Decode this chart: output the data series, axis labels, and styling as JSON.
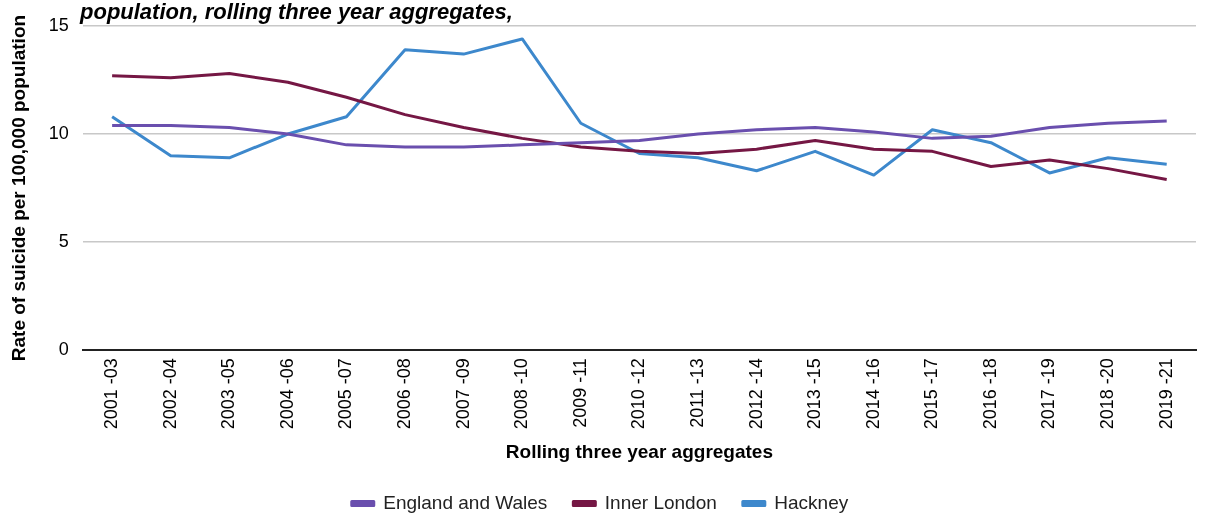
{
  "chart_data": {
    "type": "line",
    "title": "population, rolling three year aggregates,",
    "xlabel": "Rolling three year aggregates",
    "ylabel": "Rate of suicide per 100,000 population",
    "categories": [
      "2001 -03",
      "2002 -04",
      "2003 -05",
      "2004 -06",
      "2005 -07",
      "2006 -08",
      "2007 -09",
      "2008 -10",
      "2009 -11",
      "2010 -12",
      "2011 -13",
      "2012 -14",
      "2013 -15",
      "2014 -16",
      "2015 -17",
      "2016 -18",
      "2017 -19",
      "2018 -20",
      "2019 -21"
    ],
    "series": [
      {
        "name": "England and Wales",
        "color": "#6a4fae",
        "values": [
          10.4,
          10.4,
          10.3,
          10.0,
          9.5,
          9.4,
          9.4,
          9.5,
          9.6,
          9.7,
          10.0,
          10.2,
          10.3,
          10.1,
          9.8,
          9.9,
          10.3,
          10.5,
          10.6
        ]
      },
      {
        "name": "Inner London",
        "color": "#751744",
        "values": [
          12.7,
          12.6,
          12.8,
          12.4,
          11.7,
          10.9,
          10.3,
          9.8,
          9.4,
          9.2,
          9.1,
          9.3,
          9.7,
          9.3,
          9.2,
          8.5,
          8.8,
          8.4,
          7.9
        ]
      },
      {
        "name": "Hackney",
        "color": "#3d88cc",
        "values": [
          10.8,
          9.0,
          8.9,
          10.0,
          10.8,
          13.9,
          13.7,
          14.4,
          10.5,
          9.1,
          8.9,
          8.3,
          9.2,
          8.1,
          10.2,
          9.6,
          8.2,
          8.9,
          8.6
        ]
      }
    ],
    "ylim": [
      0,
      15
    ],
    "yticks": [
      0,
      5,
      10,
      15
    ],
    "grid": "y",
    "legend": "bottom",
    "marker": "none",
    "line_style": "solid"
  }
}
